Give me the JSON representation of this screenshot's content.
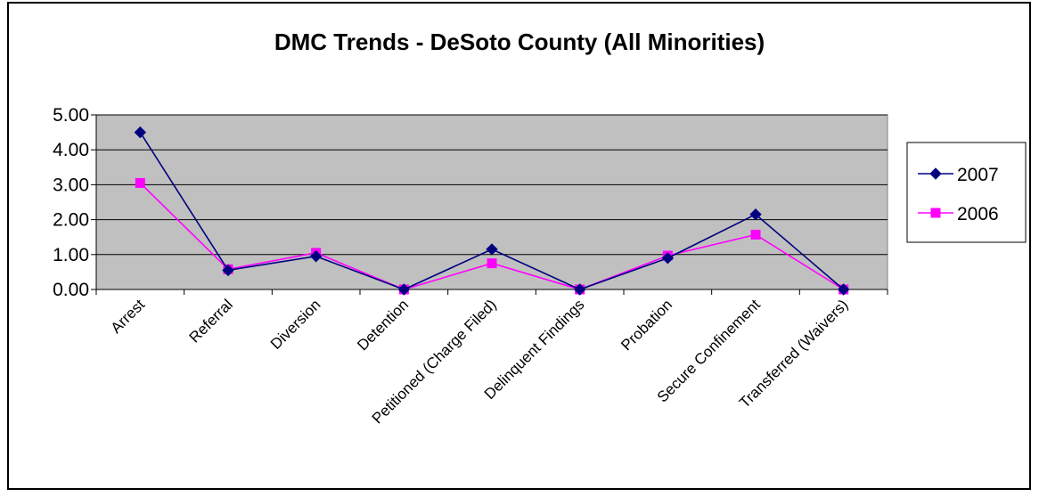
{
  "chart_data": {
    "type": "line",
    "title": "DMC Trends - DeSoto County (All Minorities)",
    "xlabel": "",
    "ylabel": "",
    "categories": [
      "Arrest",
      "Referral",
      "Diversion",
      "Detention",
      "Petitioned (Charge Filed)",
      "Delinquent Findings",
      "Probation",
      "Secure Confinement",
      "Transferred (Waivers)"
    ],
    "series": [
      {
        "name": "2007",
        "color": "#000080",
        "marker": "diamond",
        "values": [
          4.5,
          0.55,
          0.95,
          0.0,
          1.15,
          0.0,
          0.9,
          2.15,
          0.0
        ]
      },
      {
        "name": "2006",
        "color": "#FF00FF",
        "marker": "square",
        "values": [
          3.05,
          0.58,
          1.05,
          0.0,
          0.75,
          0.0,
          0.97,
          1.57,
          0.0
        ]
      }
    ],
    "ylim": [
      0,
      5
    ],
    "yticks": [
      "0.00",
      "1.00",
      "2.00",
      "3.00",
      "4.00",
      "5.00"
    ],
    "grid": true,
    "plot_background": "#C0C0C0",
    "legend_position": "right"
  }
}
